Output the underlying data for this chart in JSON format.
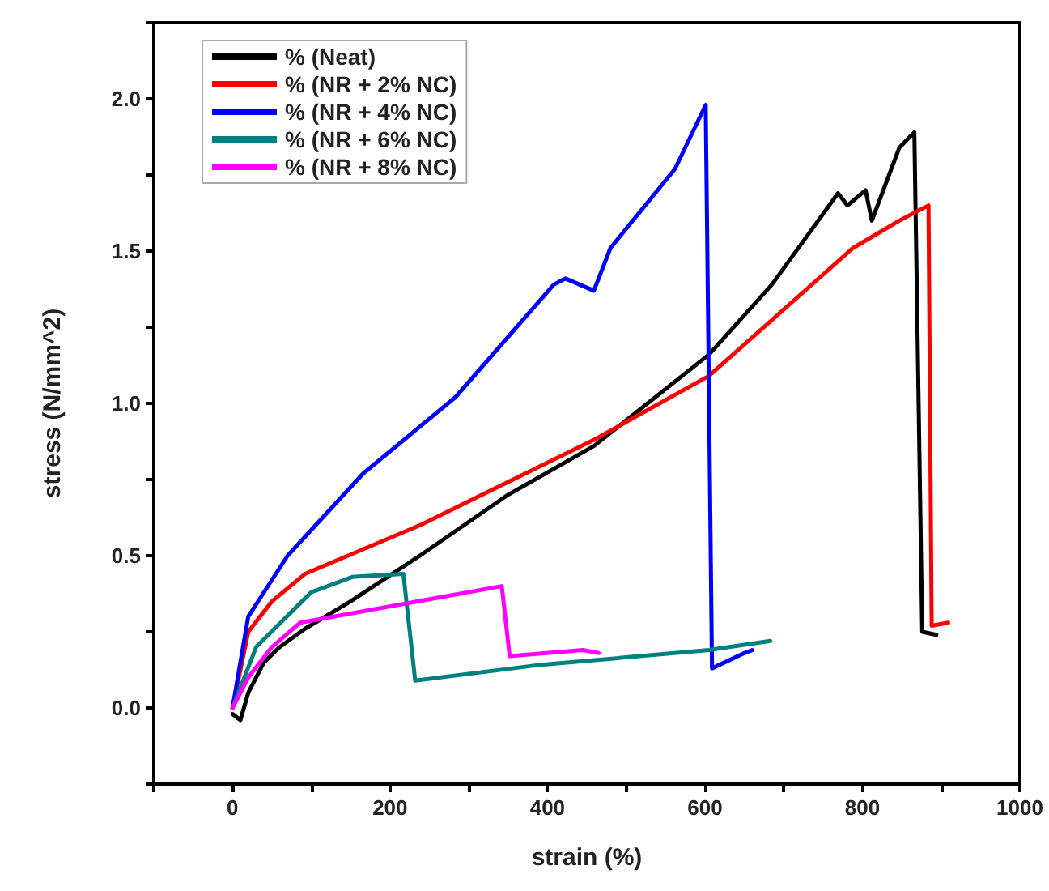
{
  "chart_data": {
    "type": "line",
    "xlabel": "strain (%)",
    "ylabel": "stress (N/mm^2)",
    "xlim": [
      -100,
      1000
    ],
    "ylim": [
      -0.25,
      2.25
    ],
    "xticks": [
      {
        "value": -100,
        "label": null
      },
      0,
      {
        "value": 100,
        "label": null
      },
      200,
      {
        "value": 300,
        "label": null
      },
      400,
      {
        "value": 500,
        "label": null
      },
      600,
      {
        "value": 700,
        "label": null
      },
      800,
      {
        "value": 900,
        "label": null
      },
      1000
    ],
    "yticks": [
      {
        "value": -0.25,
        "label": null
      },
      {
        "value": 0,
        "label": "0.0"
      },
      {
        "value": 0.25,
        "label": null
      },
      0.5,
      {
        "value": 0.75,
        "label": null
      },
      {
        "value": 1,
        "label": "1.0"
      },
      {
        "value": 1.25,
        "label": null
      },
      1.5,
      {
        "value": 1.75,
        "label": null
      },
      {
        "value": 2,
        "label": "2.0"
      },
      {
        "value": 2.25,
        "label": null
      }
    ],
    "grid": false,
    "legend": "top left",
    "marker": "none",
    "line_style": "solid",
    "series": [
      {
        "name": "% (Neat)",
        "color": "#000000",
        "x": [
          0,
          10,
          20,
          40,
          60,
          92,
          150,
          238,
          350,
          459,
          605,
          685,
          769,
          781,
          804,
          812,
          847,
          866,
          876,
          894
        ],
        "values": [
          -0.02,
          -0.04,
          0.05,
          0.15,
          0.2,
          0.26,
          0.35,
          0.5,
          0.7,
          0.86,
          1.16,
          1.39,
          1.69,
          1.65,
          1.7,
          1.6,
          1.84,
          1.89,
          0.25,
          0.24
        ]
      },
      {
        "name": "% (NR + 2% NC)",
        "color": "#ff0000",
        "x": [
          0,
          20,
          50,
          92,
          238,
          459,
          605,
          788,
          847,
          884,
          888,
          909
        ],
        "values": [
          0,
          0.25,
          0.35,
          0.44,
          0.6,
          0.88,
          1.09,
          1.51,
          1.6,
          1.65,
          0.27,
          0.28
        ]
      },
      {
        "name": "% (NR + 4% NC)",
        "color": "#0000ff",
        "x": [
          0,
          20,
          70,
          166,
          283,
          408,
          423,
          459,
          480,
          562,
          601,
          609,
          650,
          660
        ],
        "values": [
          0,
          0.3,
          0.5,
          0.77,
          1.02,
          1.39,
          1.41,
          1.37,
          1.51,
          1.77,
          1.98,
          0.13,
          0.18,
          0.19
        ]
      },
      {
        "name": "% (NR + 6% NC)",
        "color": "#008080",
        "x": [
          0,
          30,
          100,
          152,
          217,
          232,
          386,
          605,
          683
        ],
        "values": [
          0,
          0.2,
          0.38,
          0.43,
          0.44,
          0.09,
          0.14,
          0.19,
          0.22
        ]
      },
      {
        "name": "% (NR + 8% NC)",
        "color": "#ff00ff",
        "x": [
          0,
          20,
          50,
          86,
          342,
          352,
          445,
          465
        ],
        "values": [
          0,
          0.1,
          0.2,
          0.28,
          0.4,
          0.17,
          0.19,
          0.18
        ]
      }
    ]
  }
}
